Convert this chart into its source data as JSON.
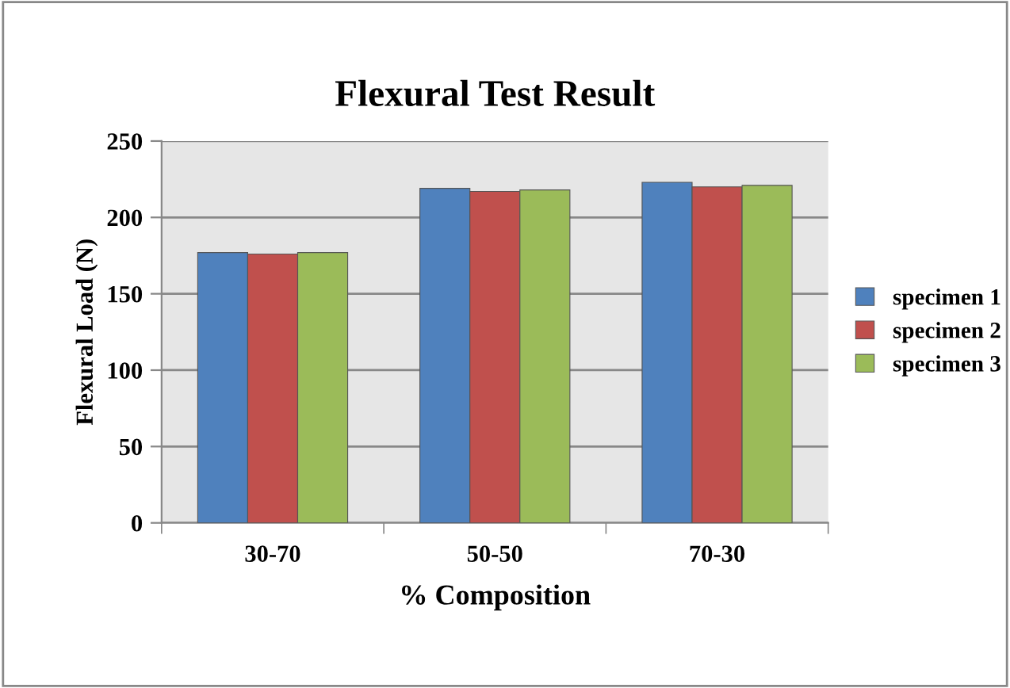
{
  "chart_data": {
    "type": "bar",
    "title": "Flexural Test Result",
    "xlabel": "% Composition",
    "ylabel": "Flexural Load (N)",
    "categories": [
      "30-70",
      "50-50",
      "70-30"
    ],
    "series": [
      {
        "name": "specimen 1",
        "color": "#4f81bd",
        "values": [
          177,
          219,
          223
        ]
      },
      {
        "name": "specimen 2",
        "color": "#c0504d",
        "values": [
          176,
          217,
          220
        ]
      },
      {
        "name": "specimen 3",
        "color": "#9bbb59",
        "values": [
          177,
          218,
          221
        ]
      }
    ],
    "ylim": [
      0,
      250
    ],
    "yticks": [
      0,
      50,
      100,
      150,
      200,
      250
    ],
    "grid": "y",
    "legend": "right"
  }
}
